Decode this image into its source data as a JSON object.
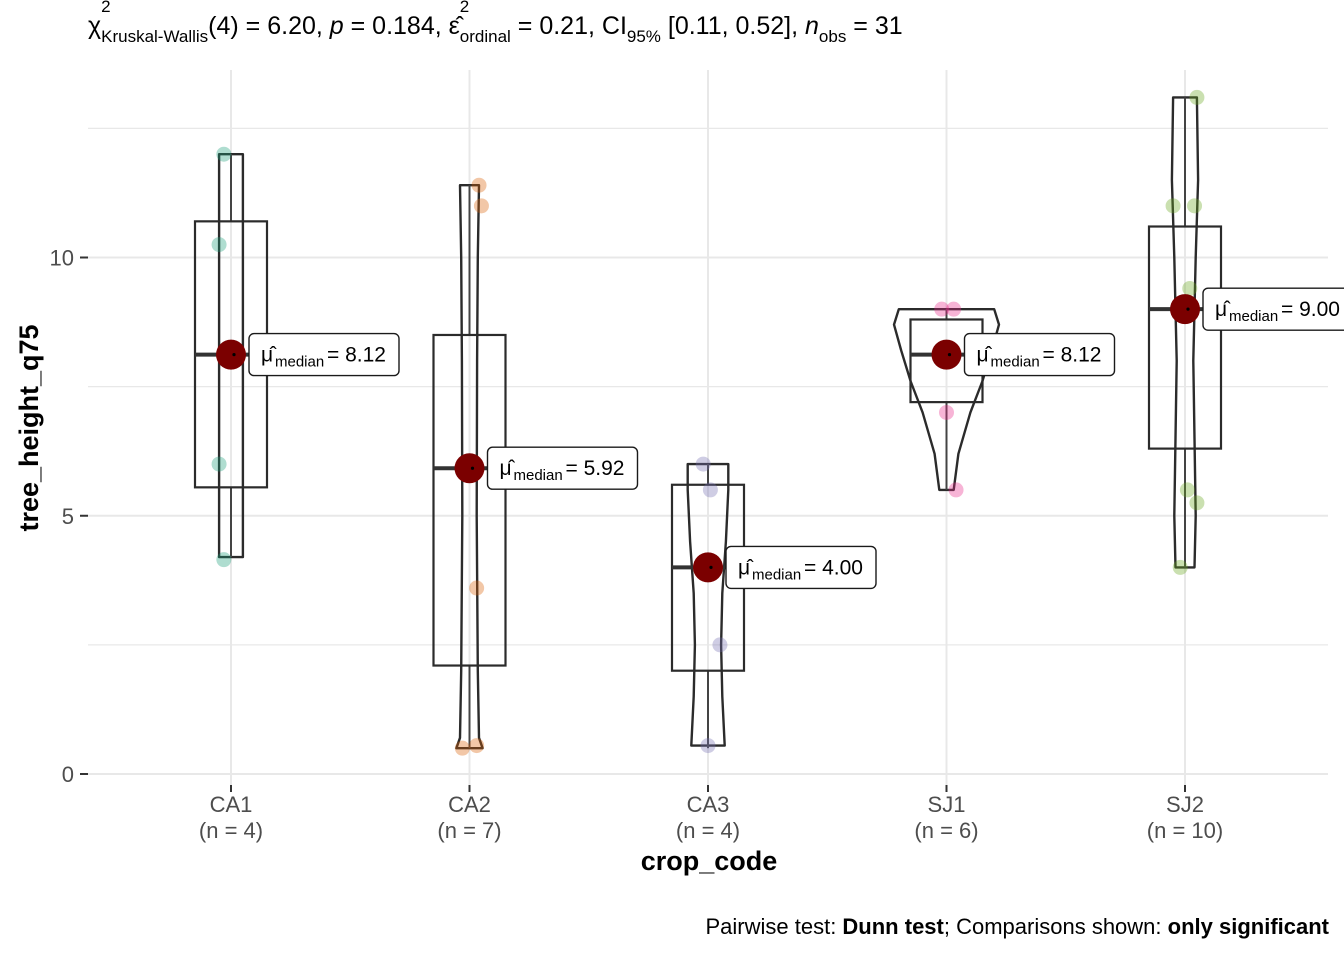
{
  "subtitle": {
    "chi": "χ",
    "chi_sup": "2",
    "chi_sub": "Kruskal-Wallis",
    "df_stat": "(4) = 6.20, ",
    "p_sym": "p",
    "p_val": " = 0.184, ",
    "eps": "ε̂",
    "eps_sup": "2",
    "eps_sub": "ordinal",
    "eps_val": " = 0.21, CI",
    "ci_sub": "95%",
    "ci_val": " [0.11, 0.52], ",
    "n_sym": "n",
    "n_sub": "obs",
    "n_val": " = 31"
  },
  "caption": {
    "prefix": "Pairwise test: ",
    "test": "Dunn test",
    "middle": "; Comparisons shown: ",
    "shown": "only significant"
  },
  "chart_data": {
    "type": "box-violin",
    "xlabel": "crop_code",
    "ylabel": "tree_height_q75",
    "ylim": [
      -0.2,
      13.8
    ],
    "yticks": [
      0,
      5,
      10
    ],
    "grid": true,
    "point_colors": {
      "CA1": "#1b9e77",
      "CA2": "#d95f02",
      "CA3": "#7570b3",
      "SJ1": "#e7298a",
      "SJ2": "#66a61e"
    },
    "median_point_color": "#7b0000",
    "label_prefix": "μ̂",
    "label_sub": "median",
    "groups": [
      {
        "name": "CA1",
        "n_label": "(n = 4)",
        "median_label": "= 8.12",
        "median": 8.12,
        "q1": 5.55,
        "q3": 10.7,
        "min": 4.2,
        "max": 12.0,
        "points": [
          [
            -0.03,
            12.0
          ],
          [
            -0.05,
            10.25
          ],
          [
            -0.05,
            6.0
          ],
          [
            -0.03,
            4.15
          ]
        ],
        "violin": [
          [
            4.2,
            0.05
          ],
          [
            5.0,
            0.05
          ],
          [
            6.0,
            0.05
          ],
          [
            7.5,
            0.05
          ],
          [
            9.0,
            0.05
          ],
          [
            10.5,
            0.05
          ],
          [
            12.0,
            0.05
          ]
        ]
      },
      {
        "name": "CA2",
        "n_label": "(n = 7)",
        "median_label": "= 5.92",
        "median": 5.92,
        "q1": 2.1,
        "q3": 8.5,
        "min": 0.5,
        "max": 11.4,
        "points": [
          [
            0.04,
            11.4
          ],
          [
            0.05,
            11.0
          ],
          [
            0.03,
            3.6
          ],
          [
            -0.03,
            0.5
          ],
          [
            0.03,
            0.55
          ]
        ],
        "violin": [
          [
            0.5,
            0.055
          ],
          [
            0.7,
            0.04
          ],
          [
            2.0,
            0.035
          ],
          [
            5.0,
            0.03
          ],
          [
            8.0,
            0.032
          ],
          [
            10.0,
            0.035
          ],
          [
            11.4,
            0.04
          ]
        ]
      },
      {
        "name": "CA3",
        "n_label": "(n = 4)",
        "median_label": "= 4.00",
        "median": 4.0,
        "q1": 2.0,
        "q3": 5.6,
        "min": 0.5,
        "max": 6.0,
        "points": [
          [
            -0.02,
            6.0
          ],
          [
            0.01,
            5.5
          ],
          [
            0.05,
            2.5
          ],
          [
            0.0,
            0.55
          ]
        ],
        "violin": [
          [
            0.55,
            0.07
          ],
          [
            1.5,
            0.06
          ],
          [
            2.5,
            0.055
          ],
          [
            3.5,
            0.06
          ],
          [
            4.5,
            0.075
          ],
          [
            5.5,
            0.085
          ],
          [
            6.0,
            0.085
          ]
        ]
      },
      {
        "name": "SJ1",
        "n_label": "(n = 6)",
        "median_label": "= 8.12",
        "median": 8.12,
        "q1": 7.2,
        "q3": 8.8,
        "min": 5.5,
        "max": 9.0,
        "points": [
          [
            -0.02,
            9.0
          ],
          [
            0.03,
            9.0
          ],
          [
            0.0,
            7.0
          ],
          [
            0.04,
            5.5
          ],
          [
            0.0,
            8.12
          ]
        ],
        "violin": [
          [
            5.5,
            0.03
          ],
          [
            6.2,
            0.05
          ],
          [
            7.0,
            0.1
          ],
          [
            7.6,
            0.15
          ],
          [
            8.2,
            0.19
          ],
          [
            8.7,
            0.22
          ],
          [
            9.0,
            0.2
          ]
        ]
      },
      {
        "name": "SJ2",
        "n_label": "(n = 10)",
        "median_label": "= 9.00",
        "median": 9.0,
        "q1": 6.3,
        "q3": 10.6,
        "min": 4.0,
        "max": 13.1,
        "points": [
          [
            0.05,
            13.1
          ],
          [
            -0.05,
            11.0
          ],
          [
            0.04,
            11.0
          ],
          [
            0.02,
            9.4
          ],
          [
            0.01,
            5.5
          ],
          [
            0.05,
            5.25
          ],
          [
            -0.02,
            4.0
          ]
        ],
        "violin": [
          [
            4.0,
            0.04
          ],
          [
            5.0,
            0.045
          ],
          [
            6.5,
            0.04
          ],
          [
            8.0,
            0.035
          ],
          [
            10.0,
            0.045
          ],
          [
            11.5,
            0.055
          ],
          [
            13.1,
            0.05
          ]
        ]
      }
    ]
  }
}
